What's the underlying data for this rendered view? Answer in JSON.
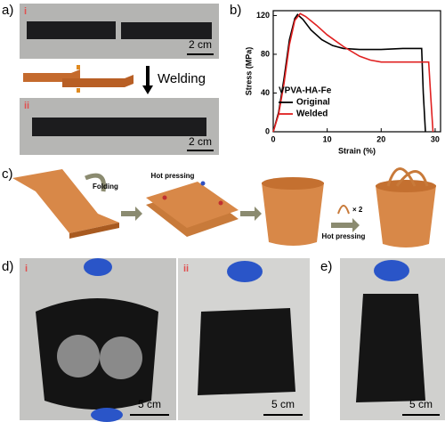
{
  "panel_a": {
    "label": "a)",
    "photo_i": "i",
    "scale_i": "2 cm",
    "arrow_text": "Welding",
    "photo_ii": "ii",
    "scale_ii": "2 cm"
  },
  "panel_b": {
    "label": "b)"
  },
  "chart_data": {
    "type": "line",
    "xlabel": "Strain (%)",
    "ylabel": "Stress (MPa)",
    "legend_title": "VPVA-HA-Fe",
    "xlim": [
      0,
      31
    ],
    "ylim": [
      0,
      125
    ],
    "xticks": [
      0,
      10,
      20,
      30
    ],
    "yticks": [
      0,
      40,
      80,
      120
    ],
    "legend": "lower left",
    "series": [
      {
        "name": "Original",
        "color": "#000000",
        "x": [
          0,
          1,
          2,
          3,
          4,
          4.5,
          5.5,
          7,
          9,
          11,
          13,
          16,
          20,
          24,
          27.5,
          27.8,
          28.2
        ],
        "values": [
          0,
          20,
          55,
          95,
          117,
          121,
          116,
          105,
          95,
          89,
          86,
          85,
          85,
          86,
          86,
          40,
          0
        ]
      },
      {
        "name": "Welded",
        "color": "#e02020",
        "x": [
          0,
          1,
          2,
          3,
          4,
          5,
          6,
          8,
          10,
          13,
          16,
          18,
          20,
          24,
          28.8,
          29.2,
          29.6
        ],
        "values": [
          0,
          18,
          50,
          90,
          115,
          122,
          119,
          110,
          100,
          88,
          78,
          74,
          72,
          72,
          72,
          35,
          0
        ]
      }
    ]
  },
  "panel_c": {
    "label": "c)",
    "step1": "Folding",
    "step2": "Hot pressing",
    "multiplier": "× 2",
    "step3": "Hot pressing"
  },
  "panel_d": {
    "label": "d)",
    "photo_i": "i",
    "scale_i": "5 cm",
    "photo_ii": "ii",
    "scale_ii": "5 cm"
  },
  "panel_e": {
    "label": "e)",
    "scale": "5 cm"
  }
}
